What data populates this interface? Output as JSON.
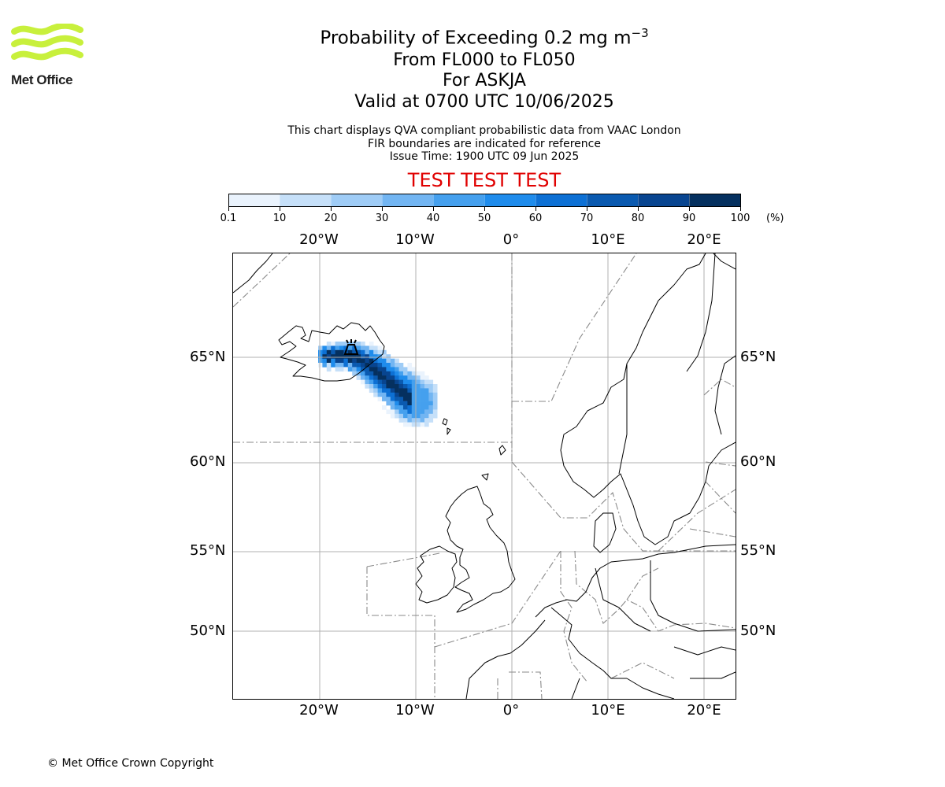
{
  "header": {
    "logo_text": "Met Office",
    "title_main": "Probability of Exceeding 0.2 mg m",
    "title_superscript": "−3",
    "title_levels": "From FL000 to FL050",
    "title_volcano": "For ASKJA",
    "title_valid": "Valid at 0700 UTC 10/06/2025",
    "info_line1": "This chart displays QVA compliant probabilistic data from VAAC London",
    "info_line2": "FIR boundaries are indicated for reference",
    "info_line3": "Issue Time: 1900 UTC 09 Jun 2025",
    "test_label": "TEST TEST TEST"
  },
  "colorbar": {
    "ticks": [
      "0.1",
      "10",
      "20",
      "30",
      "40",
      "50",
      "60",
      "70",
      "80",
      "90",
      "100"
    ],
    "unit": "(%)",
    "colors": [
      "#eaf3fd",
      "#c6e0f9",
      "#9fccf6",
      "#72b5f2",
      "#45a0ee",
      "#1f8cec",
      "#0d70d4",
      "#0a5ab0",
      "#084590",
      "#05305f"
    ]
  },
  "map": {
    "lon_labels": [
      "20°W",
      "10°W",
      "0°",
      "10°E",
      "20°E"
    ],
    "lat_labels": [
      "65°N",
      "60°N",
      "55°N",
      "50°N"
    ],
    "volcano_icon": "volcano-icon"
  },
  "footer": {
    "copyright": "© Met Office Crown Copyright"
  }
}
